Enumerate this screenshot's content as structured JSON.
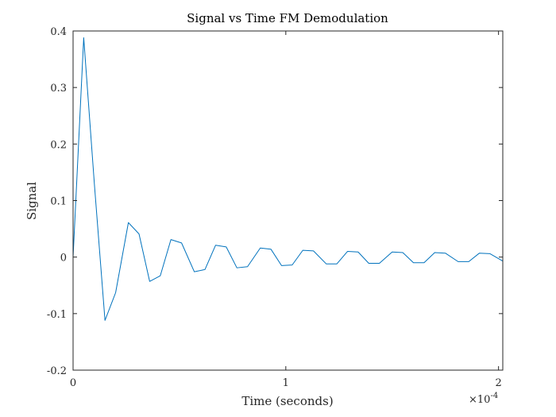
{
  "chart_data": {
    "type": "line",
    "title": "Signal vs Time FM Demodulation",
    "xlabel": "Time (seconds)",
    "ylabel": "Signal",
    "x_exponent_base": "×10",
    "x_exponent_power": "-4",
    "xlim": [
      0,
      0.000202
    ],
    "ylim": [
      -0.2,
      0.4
    ],
    "x_ticks": [
      {
        "value": 0,
        "label": "0"
      },
      {
        "value": 0.0001,
        "label": "1"
      },
      {
        "value": 0.0002,
        "label": "2"
      }
    ],
    "y_ticks": [
      {
        "value": -0.2,
        "label": "-0.2"
      },
      {
        "value": -0.1,
        "label": "-0.1"
      },
      {
        "value": 0,
        "label": "0"
      },
      {
        "value": 0.1,
        "label": "0.1"
      },
      {
        "value": 0.2,
        "label": "0.2"
      },
      {
        "value": 0.3,
        "label": "0.3"
      },
      {
        "value": 0.4,
        "label": "0.4"
      }
    ],
    "grid": false,
    "line_color": "#0072BD",
    "series": [
      {
        "x": [
          0,
          5e-06,
          1e-05,
          1.5e-05,
          2e-05,
          2.6e-05,
          3.1e-05,
          3.6e-05,
          4.1e-05,
          4.6e-05,
          5.1e-05,
          5.7e-05,
          6.2e-05,
          6.7e-05,
          7.2e-05,
          7.7e-05,
          8.2e-05,
          8.8e-05,
          9.3e-05,
          9.8e-05,
          0.000103,
          0.000108,
          0.000113,
          0.000119,
          0.000124,
          0.000129,
          0.000134,
          0.000139,
          0.000144,
          0.00015,
          0.000155,
          0.00016,
          0.000165,
          0.00017,
          0.000175,
          0.000181,
          0.000186,
          0.000191,
          0.000196,
          0.000202
        ],
        "y": [
          0,
          0.388,
          0.13,
          -0.112,
          -0.063,
          0.061,
          0.041,
          -0.043,
          -0.033,
          0.031,
          0.025,
          -0.026,
          -0.022,
          0.021,
          0.018,
          -0.019,
          -0.017,
          0.016,
          0.014,
          -0.015,
          -0.014,
          0.012,
          0.011,
          -0.012,
          -0.012,
          0.01,
          0.009,
          -0.011,
          -0.011,
          0.009,
          0.008,
          -0.01,
          -0.01,
          0.008,
          0.007,
          -0.008,
          -0.008,
          0.007,
          0.006,
          -0.007
        ]
      }
    ]
  }
}
